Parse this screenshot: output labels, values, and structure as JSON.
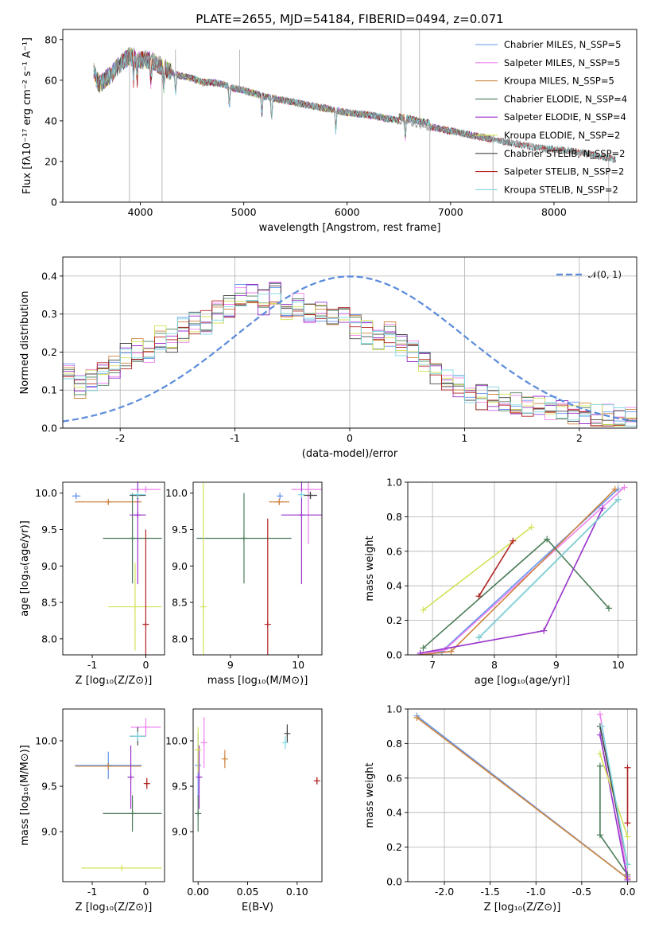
{
  "chart_data": [
    {
      "type": "line",
      "title": "PLATE=2655, MJD=54184, FIBERID=0494, z=0.071",
      "xlabel": "wavelength [Angstrom, rest frame]",
      "ylabel": "Flux [fλ10⁻¹⁷ erg cm⁻² s⁻¹ A⁻¹]",
      "xlim": [
        3250,
        8800
      ],
      "ylim": [
        0,
        85
      ],
      "xticks": [
        4000,
        5000,
        6000,
        7000,
        8000
      ],
      "yticks": [
        0,
        20,
        40,
        60,
        80
      ],
      "grid": false,
      "legend_position": "upper-right",
      "data_continuum": {
        "x": [
          3550,
          3600,
          3700,
          3800,
          3900,
          4000,
          4100,
          4200,
          4300,
          4400,
          4500,
          4600,
          4700,
          4800,
          4900,
          5000,
          5200,
          5400,
          5600,
          5800,
          6000,
          6200,
          6400,
          6600,
          6800,
          7000,
          7200,
          7400,
          7600,
          7800,
          8000,
          8200,
          8400,
          8600
        ],
        "y": [
          64,
          58,
          62,
          68,
          72,
          70,
          70,
          67,
          64,
          62,
          61,
          59,
          59,
          58,
          56,
          55,
          52,
          50,
          48,
          46,
          44,
          43,
          41,
          39,
          37,
          35,
          33,
          31,
          29,
          27,
          26,
          25,
          23,
          21
        ]
      },
      "series": [
        {
          "name": "Chabrier MILES, N_SSP=5",
          "color": "#6495ed"
        },
        {
          "name": "Salpeter MILES, N_SSP=5",
          "color": "#ee82ee"
        },
        {
          "name": "Kroupa MILES, N_SSP=5",
          "color": "#cd853f"
        },
        {
          "name": "Chabrier ELODIE, N_SSP=4",
          "color": "#4a7c59"
        },
        {
          "name": "Salpeter ELODIE, N_SSP=4",
          "color": "#9932cc"
        },
        {
          "name": "Kroupa ELODIE, N_SSP=2",
          "color": "#d4e157"
        },
        {
          "name": "Chabrier STELIB, N_SSP=2",
          "color": "#444444"
        },
        {
          "name": "Salpeter STELIB, N_SSP=2",
          "color": "#b22222"
        },
        {
          "name": "Kroupa STELIB, N_SSP=2",
          "color": "#7fd8e0"
        }
      ]
    },
    {
      "type": "line",
      "xlabel": "(data-model)/error",
      "ylabel": "Normed distribution",
      "xlim": [
        -2.5,
        2.5
      ],
      "ylim": [
        0,
        0.45
      ],
      "xticks": [
        -2,
        -1,
        0,
        1,
        2
      ],
      "yticks": [
        0.0,
        0.1,
        0.2,
        0.3,
        0.4
      ],
      "grid": true,
      "legend_position": "upper-right",
      "legend": "𝒩(0, 1)",
      "normal_curve": {
        "mean": 0,
        "sigma": 1,
        "color": "#5b8bdb"
      },
      "hist_bins": [
        -2.5,
        -2.4,
        -2.3,
        -2.2,
        -2.1,
        -2.0,
        -1.9,
        -1.8,
        -1.7,
        -1.6,
        -1.5,
        -1.4,
        -1.3,
        -1.2,
        -1.1,
        -1.0,
        -0.9,
        -0.8,
        -0.7,
        -0.6,
        -0.5,
        -0.4,
        -0.3,
        -0.2,
        -0.1,
        0.0,
        0.1,
        0.2,
        0.3,
        0.4,
        0.5,
        0.6,
        0.7,
        0.8,
        0.9,
        1.0,
        1.1,
        1.2,
        1.3,
        1.4,
        1.5,
        1.6,
        1.7,
        1.8,
        1.9,
        2.0,
        2.1,
        2.2,
        2.3,
        2.4,
        2.5
      ],
      "hist_mean": [
        0.15,
        0.11,
        0.13,
        0.14,
        0.16,
        0.19,
        0.21,
        0.2,
        0.24,
        0.23,
        0.26,
        0.28,
        0.28,
        0.3,
        0.32,
        0.35,
        0.36,
        0.33,
        0.35,
        0.31,
        0.32,
        0.3,
        0.3,
        0.28,
        0.29,
        0.27,
        0.25,
        0.24,
        0.25,
        0.22,
        0.2,
        0.18,
        0.15,
        0.13,
        0.11,
        0.09,
        0.08,
        0.08,
        0.07,
        0.06,
        0.06,
        0.05,
        0.05,
        0.04,
        0.04,
        0.04,
        0.03,
        0.03,
        0.02,
        0.02
      ]
    },
    {
      "type": "scatter",
      "xlabel": "Z [log₁₀(Z/Z⊙)]",
      "ylabel": "age  [log₁₀(age/yr)]",
      "xlim": [
        -1.55,
        0.35
      ],
      "ylim": [
        7.78,
        10.15
      ],
      "xticks": [
        -1,
        0
      ],
      "yticks": [
        8.0,
        8.5,
        9.0,
        9.5,
        10.0
      ],
      "grid": false,
      "points": [
        {
          "x": -1.3,
          "y": 9.96,
          "xerr": 0.08,
          "yerr": 0.04,
          "color": "#6495ed"
        },
        {
          "x": 0.0,
          "y": 10.05,
          "xerr": 0.28,
          "yerr": 0.02,
          "color": "#ee82ee"
        },
        {
          "x": -0.7,
          "y": 9.88,
          "xerr": 0.62,
          "yerr": 0.03,
          "color": "#cd853f"
        },
        {
          "x": -0.25,
          "y": 9.38,
          "xerr": 0.55,
          "yerr": 0.62,
          "color": "#4a7c59"
        },
        {
          "x": -0.15,
          "y": 9.7,
          "xerr": 0.15,
          "yerr": 0.95,
          "color": "#9932cc"
        },
        {
          "x": -0.2,
          "y": 8.44,
          "xerr": 0.5,
          "yerr": 0.6,
          "color": "#d4e157"
        },
        {
          "x": -0.15,
          "y": 9.97,
          "xerr": 0.15,
          "yerr": 0.05,
          "color": "#444444"
        },
        {
          "x": 0.0,
          "y": 8.2,
          "xerr": 0.05,
          "yerr": 1.3,
          "color": "#b22222"
        },
        {
          "x": -0.15,
          "y": 9.98,
          "xerr": 0.15,
          "yerr": 0.04,
          "color": "#7fd8e0"
        }
      ]
    },
    {
      "type": "scatter",
      "xlabel": "mass [log₁₀(M/M⊙)]",
      "xlim": [
        8.45,
        10.35
      ],
      "ylim": [
        7.78,
        10.15
      ],
      "xticks": [
        9,
        10
      ],
      "yticks": [
        8.0,
        8.5,
        9.0,
        9.5,
        10.0
      ],
      "grid": false,
      "points": [
        {
          "x": 9.73,
          "y": 9.96,
          "xerr": 0.0,
          "yerr": 0.04,
          "color": "#6495ed"
        },
        {
          "x": 10.15,
          "y": 10.05,
          "xerr": 0.25,
          "yerr": 0.75,
          "color": "#ee82ee"
        },
        {
          "x": 9.72,
          "y": 9.88,
          "xerr": 0.15,
          "yerr": 0.04,
          "color": "#cd853f"
        },
        {
          "x": 9.2,
          "y": 9.38,
          "xerr": 0.7,
          "yerr": 0.62,
          "color": "#4a7c59"
        },
        {
          "x": 10.05,
          "y": 9.7,
          "xerr": 0.3,
          "yerr": 0.95,
          "color": "#9932cc"
        },
        {
          "x": 8.6,
          "y": 8.44,
          "xerr": 0.0,
          "yerr": 1.7,
          "color": "#d4e157"
        },
        {
          "x": 10.18,
          "y": 9.97,
          "xerr": 0.1,
          "yerr": 0.05,
          "color": "#444444"
        },
        {
          "x": 9.55,
          "y": 8.2,
          "xerr": 0.0,
          "yerr": 1.45,
          "color": "#b22222"
        },
        {
          "x": 10.05,
          "y": 9.98,
          "xerr": 0.05,
          "yerr": 0.04,
          "color": "#7fd8e0"
        }
      ]
    },
    {
      "type": "line",
      "xlabel": "age  [log₁₀(age/yr)]",
      "ylabel": "mass weight",
      "xlim": [
        6.6,
        10.3
      ],
      "ylim": [
        0,
        1
      ],
      "xticks": [
        7,
        8,
        9,
        10
      ],
      "yticks": [
        0.0,
        0.2,
        0.4,
        0.6,
        0.8,
        1.0
      ],
      "grid": true,
      "series": [
        {
          "color": "#6495ed",
          "x": [
            6.8,
            7.15,
            10.0
          ],
          "y": [
            0.0,
            0.02,
            0.96
          ]
        },
        {
          "color": "#ee82ee",
          "x": [
            6.8,
            7.2,
            10.1
          ],
          "y": [
            0.0,
            0.03,
            0.97
          ]
        },
        {
          "color": "#cd853f",
          "x": [
            6.8,
            7.3,
            9.95
          ],
          "y": [
            0.0,
            0.02,
            0.96
          ]
        },
        {
          "color": "#4a7c59",
          "x": [
            6.85,
            8.85,
            9.85
          ],
          "y": [
            0.04,
            0.67,
            0.27
          ]
        },
        {
          "color": "#9932cc",
          "x": [
            6.8,
            8.8,
            9.75
          ],
          "y": [
            0.01,
            0.14,
            0.85
          ]
        },
        {
          "color": "#d4e157",
          "x": [
            6.85,
            8.6
          ],
          "y": [
            0.26,
            0.74
          ]
        },
        {
          "color": "#444444",
          "x": [
            7.75,
            10.0
          ],
          "y": [
            0.1,
            0.9
          ]
        },
        {
          "color": "#b22222",
          "x": [
            7.75,
            8.3
          ],
          "y": [
            0.34,
            0.66
          ]
        },
        {
          "color": "#7fd8e0",
          "x": [
            7.75,
            10.0
          ],
          "y": [
            0.1,
            0.9
          ]
        }
      ]
    },
    {
      "type": "scatter",
      "xlabel": "Z [log₁₀(Z/Z⊙)]",
      "ylabel": "mass [log₁₀(M/M⊙)]",
      "xlim": [
        -1.55,
        0.35
      ],
      "ylim": [
        8.45,
        10.35
      ],
      "xticks": [
        -1,
        0
      ],
      "yticks": [
        9.0,
        9.5,
        10.0
      ],
      "grid": false,
      "points": [
        {
          "x": -0.7,
          "y": 9.73,
          "xerr": 0.62,
          "yerr": 0.15,
          "color": "#6495ed"
        },
        {
          "x": 0.0,
          "y": 10.15,
          "xerr": 0.28,
          "yerr": 0.1,
          "color": "#ee82ee"
        },
        {
          "x": -0.7,
          "y": 9.72,
          "xerr": 0.62,
          "yerr": 0.0,
          "color": "#cd853f"
        },
        {
          "x": -0.25,
          "y": 9.2,
          "xerr": 0.55,
          "yerr": 0.2,
          "color": "#4a7c59"
        },
        {
          "x": -0.28,
          "y": 9.6,
          "xerr": 0.0,
          "yerr": 0.35,
          "color": "#9932cc"
        },
        {
          "x": -0.45,
          "y": 8.6,
          "xerr": 0.75,
          "yerr": 0.0,
          "color": "#d4e157"
        },
        {
          "x": -0.15,
          "y": 10.05,
          "xerr": 0.15,
          "yerr": 0.1,
          "color": "#444444"
        },
        {
          "x": 0.02,
          "y": 9.53,
          "xerr": 0.03,
          "yerr": 0.06,
          "color": "#b22222"
        },
        {
          "x": -0.15,
          "y": 10.05,
          "xerr": 0.15,
          "yerr": 0.05,
          "color": "#7fd8e0"
        }
      ]
    },
    {
      "type": "scatter",
      "xlabel": "E(B-V)",
      "xlim": [
        -0.005,
        0.125
      ],
      "ylim": [
        8.45,
        10.35
      ],
      "xticks": [
        0.0,
        0.05,
        0.1
      ],
      "yticks": [
        9.0,
        9.5,
        10.0
      ],
      "grid": false,
      "points": [
        {
          "x": 0.0,
          "y": 9.73,
          "yerr": 0.35,
          "color": "#6495ed"
        },
        {
          "x": 0.006,
          "y": 9.98,
          "yerr": 0.28,
          "color": "#ee82ee"
        },
        {
          "x": 0.027,
          "y": 9.8,
          "yerr": 0.1,
          "color": "#cd853f"
        },
        {
          "x": 0.0,
          "y": 9.2,
          "yerr": 0.2,
          "color": "#4a7c59"
        },
        {
          "x": 0.001,
          "y": 9.6,
          "yerr": 0.35,
          "color": "#9932cc"
        },
        {
          "x": 0.0,
          "y": 9.9,
          "yerr": 0.25,
          "color": "#d4e157"
        },
        {
          "x": 0.09,
          "y": 10.08,
          "yerr": 0.1,
          "color": "#444444"
        },
        {
          "x": 0.12,
          "y": 9.56,
          "yerr": 0.04,
          "color": "#b22222"
        },
        {
          "x": 0.088,
          "y": 9.98,
          "yerr": 0.07,
          "color": "#7fd8e0"
        }
      ]
    },
    {
      "type": "line",
      "xlabel": "Z [log₁₀(Z/Z⊙)]",
      "ylabel": "mass weight",
      "xlim": [
        -2.4,
        0.1
      ],
      "ylim": [
        0,
        1
      ],
      "xticks": [
        -2.0,
        -1.5,
        -1.0,
        -0.5,
        0.0
      ],
      "yticks": [
        0.0,
        0.2,
        0.4,
        0.6,
        0.8,
        1.0
      ],
      "grid": true,
      "series": [
        {
          "color": "#6495ed",
          "x": [
            -2.3,
            0.0
          ],
          "y": [
            0.96,
            0.02
          ]
        },
        {
          "color": "#ee82ee",
          "x": [
            -0.3,
            0.0
          ],
          "y": [
            0.97,
            0.03
          ]
        },
        {
          "color": "#cd853f",
          "x": [
            -2.3,
            0.0
          ],
          "y": [
            0.95,
            0.02
          ]
        },
        {
          "color": "#4a7c59",
          "x": [
            -0.3,
            -0.3,
            0.0
          ],
          "y": [
            0.67,
            0.27,
            0.04
          ]
        },
        {
          "color": "#9932cc",
          "x": [
            -0.3,
            0.0
          ],
          "y": [
            0.85,
            0.01
          ]
        },
        {
          "color": "#d4e157",
          "x": [
            -0.3,
            0.0
          ],
          "y": [
            0.74,
            0.26
          ]
        },
        {
          "color": "#444444",
          "x": [
            -0.3,
            0.0
          ],
          "y": [
            0.9,
            0.1
          ]
        },
        {
          "color": "#b22222",
          "x": [
            0.0,
            0.0
          ],
          "y": [
            0.66,
            0.34
          ]
        },
        {
          "color": "#7fd8e0",
          "x": [
            -0.28,
            0.0
          ],
          "y": [
            0.9,
            0.1
          ]
        }
      ]
    }
  ]
}
